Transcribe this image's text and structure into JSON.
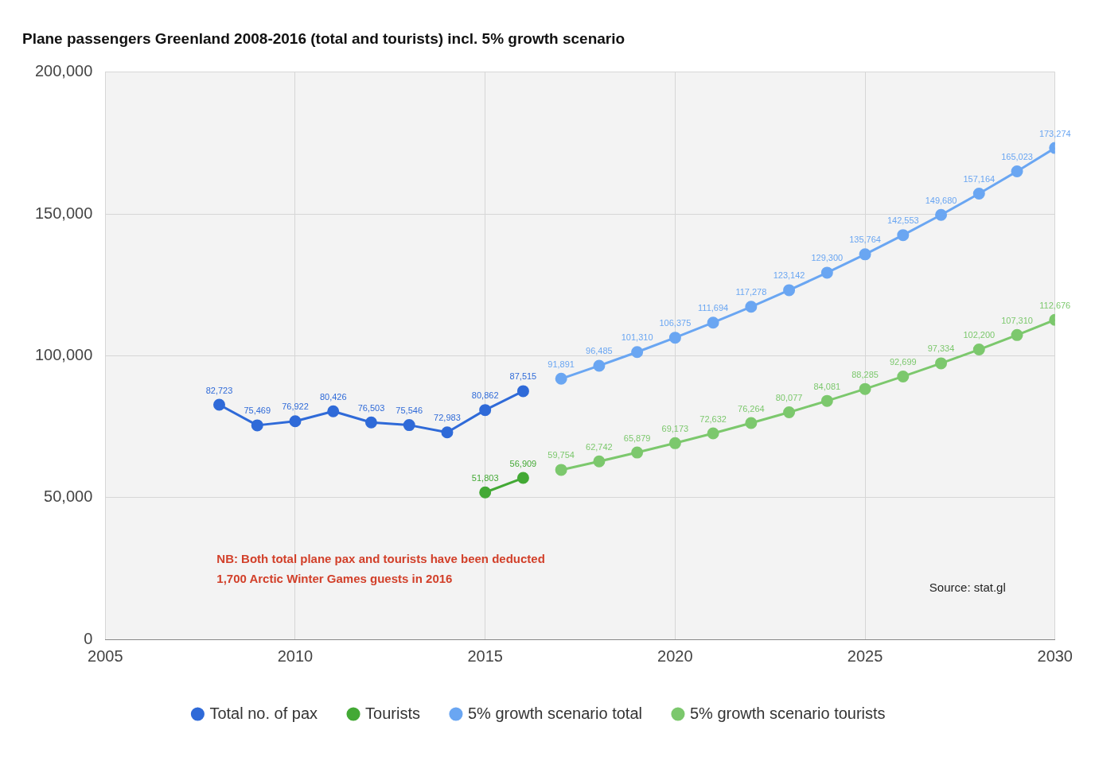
{
  "chart_data": {
    "type": "line",
    "title": "Plane passengers Greenland 2008-2016 (total and tourists) incl. 5% growth scenario",
    "xlim": [
      2005,
      2030
    ],
    "xticks": [
      2005,
      2010,
      2015,
      2020,
      2025,
      2030
    ],
    "ylim": [
      0,
      200000
    ],
    "yticks": [
      {
        "value": 0,
        "label": "0"
      },
      {
        "value": 50000,
        "label": "50,000"
      },
      {
        "value": 100000,
        "label": "100,000"
      },
      {
        "value": 150000,
        "label": "150,000"
      },
      {
        "value": 200000,
        "label": "200,000"
      }
    ],
    "grid": true,
    "legend": "bottom",
    "marker": "circle",
    "line_style": "solid",
    "series": [
      {
        "name": "Total no. of pax",
        "color": "#2f6ad8",
        "x": [
          2008,
          2009,
          2010,
          2011,
          2012,
          2013,
          2014,
          2015,
          2016
        ],
        "values": [
          82723,
          75469,
          76922,
          80426,
          76503,
          75546,
          72983,
          80862,
          87515
        ],
        "value_labels": [
          "82,723",
          "75,469",
          "76,922",
          "80,426",
          "76,503",
          "75,546",
          "72,983",
          "80,862",
          "87,515"
        ]
      },
      {
        "name": "Tourists",
        "color": "#43a935",
        "x": [
          2015,
          2016
        ],
        "values": [
          51803,
          56909
        ],
        "value_labels": [
          "51,803",
          "56,909"
        ]
      },
      {
        "name": "5% growth scenario total",
        "color": "#6aa6f2",
        "x": [
          2017,
          2018,
          2019,
          2020,
          2021,
          2022,
          2023,
          2024,
          2025,
          2026,
          2027,
          2028,
          2029,
          2030
        ],
        "values": [
          91891,
          96485,
          101310,
          106375,
          111694,
          117278,
          123142,
          129300,
          135764,
          142553,
          149680,
          157164,
          165023,
          173274
        ],
        "value_labels": [
          "91,891",
          "96,485",
          "101,310",
          "106,375",
          "111,694",
          "117,278",
          "123,142",
          "129,300",
          "135,764",
          "142,553",
          "149,680",
          "157,164",
          "165,023",
          "173,274"
        ]
      },
      {
        "name": "5% growth scenario tourists",
        "color": "#7cc86d",
        "x": [
          2017,
          2018,
          2019,
          2020,
          2021,
          2022,
          2023,
          2024,
          2025,
          2026,
          2027,
          2028,
          2029,
          2030
        ],
        "values": [
          59754,
          62742,
          65879,
          69173,
          72632,
          76264,
          80077,
          84081,
          88285,
          92699,
          97334,
          102200,
          107310,
          112676
        ],
        "value_labels": [
          "59,754",
          "62,742",
          "65,879",
          "69,173",
          "72,632",
          "76,264",
          "80,077",
          "84,081",
          "88,285",
          "92,699",
          "97,334",
          "102,200",
          "107,310",
          "112,676"
        ]
      }
    ],
    "annotations": [
      "NB: Both total plane pax and tourists have been deducted 1,700 Arctic Winter Games guests in 2016",
      "Source: stat.gl"
    ]
  }
}
